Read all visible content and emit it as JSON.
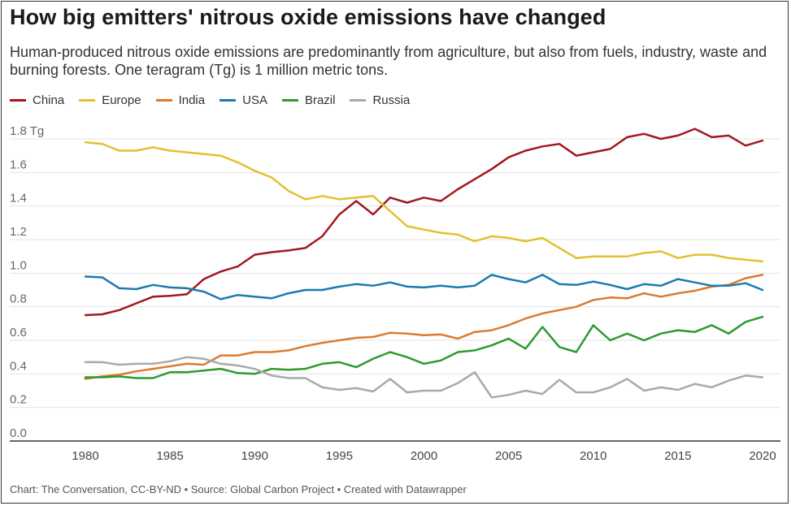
{
  "title": "How big emitters' nitrous oxide emissions have changed",
  "subtitle": "Human-produced nitrous oxide emissions are predominantly from agriculture, but also from fuels, industry, waste and burning forests. One teragram (Tg) is 1 million metric tons.",
  "footer": "Chart: The Conversation, CC-BY-ND • Source: Global Carbon Project • Created with Datawrapper",
  "chart_data": {
    "type": "line",
    "title": "How big emitters' nitrous oxide emissions have changed",
    "xlabel": "",
    "ylabel": "",
    "unit": "Tg",
    "ylim": [
      0,
      1.8
    ],
    "y_ticks": [
      "0.0",
      "0.2",
      "0.4",
      "0.6",
      "0.8",
      "1.0",
      "1.2",
      "1.4",
      "1.6",
      "1.8 Tg"
    ],
    "x_ticks": [
      "1980",
      "1985",
      "1990",
      "1995",
      "2000",
      "2005",
      "2010",
      "2015",
      "2020"
    ],
    "grid": true,
    "legend_position": "top-left",
    "x": [
      1980,
      1981,
      1982,
      1983,
      1984,
      1985,
      1986,
      1987,
      1988,
      1989,
      1990,
      1991,
      1992,
      1993,
      1994,
      1995,
      1996,
      1997,
      1998,
      1999,
      2000,
      2001,
      2002,
      2003,
      2004,
      2005,
      2006,
      2007,
      2008,
      2009,
      2010,
      2011,
      2012,
      2013,
      2014,
      2015,
      2016,
      2017,
      2018,
      2019,
      2020
    ],
    "series": [
      {
        "name": "China",
        "color": "#a3171f",
        "values": [
          0.75,
          0.755,
          0.78,
          0.82,
          0.86,
          0.865,
          0.875,
          0.965,
          1.01,
          1.04,
          1.11,
          1.125,
          1.135,
          1.15,
          1.22,
          1.35,
          1.43,
          1.35,
          1.45,
          1.42,
          1.45,
          1.43,
          1.5,
          1.56,
          1.62,
          1.69,
          1.73,
          1.755,
          1.77,
          1.7,
          1.72,
          1.74,
          1.81,
          1.83,
          1.8,
          1.82,
          1.86,
          1.81,
          1.82,
          1.76,
          1.79
        ]
      },
      {
        "name": "Europe",
        "color": "#e2c12e",
        "values": [
          1.78,
          1.77,
          1.73,
          1.73,
          1.75,
          1.73,
          1.72,
          1.71,
          1.7,
          1.66,
          1.61,
          1.57,
          1.49,
          1.44,
          1.46,
          1.44,
          1.45,
          1.46,
          1.37,
          1.28,
          1.26,
          1.24,
          1.23,
          1.19,
          1.22,
          1.21,
          1.19,
          1.21,
          1.15,
          1.09,
          1.1,
          1.1,
          1.1,
          1.12,
          1.13,
          1.09,
          1.11,
          1.11,
          1.09,
          1.08,
          1.07
        ]
      },
      {
        "name": "India",
        "color": "#dd7a2d",
        "values": [
          0.37,
          0.385,
          0.395,
          0.415,
          0.43,
          0.445,
          0.46,
          0.455,
          0.51,
          0.51,
          0.53,
          0.53,
          0.54,
          0.565,
          0.585,
          0.6,
          0.615,
          0.62,
          0.645,
          0.64,
          0.63,
          0.635,
          0.61,
          0.65,
          0.66,
          0.69,
          0.73,
          0.76,
          0.78,
          0.8,
          0.84,
          0.855,
          0.85,
          0.88,
          0.86,
          0.88,
          0.895,
          0.92,
          0.93,
          0.97,
          0.99
        ]
      },
      {
        "name": "USA",
        "color": "#1b7bb0",
        "values": [
          0.98,
          0.975,
          0.91,
          0.905,
          0.93,
          0.915,
          0.91,
          0.89,
          0.845,
          0.87,
          0.86,
          0.85,
          0.88,
          0.9,
          0.9,
          0.92,
          0.935,
          0.925,
          0.945,
          0.92,
          0.915,
          0.925,
          0.915,
          0.925,
          0.99,
          0.965,
          0.945,
          0.99,
          0.935,
          0.93,
          0.95,
          0.93,
          0.905,
          0.935,
          0.925,
          0.965,
          0.945,
          0.925,
          0.925,
          0.94,
          0.9
        ]
      },
      {
        "name": "Brazil",
        "color": "#2d9a2d",
        "values": [
          0.38,
          0.38,
          0.385,
          0.375,
          0.375,
          0.41,
          0.41,
          0.42,
          0.43,
          0.405,
          0.4,
          0.43,
          0.425,
          0.43,
          0.46,
          0.47,
          0.44,
          0.49,
          0.53,
          0.5,
          0.46,
          0.48,
          0.53,
          0.54,
          0.57,
          0.61,
          0.55,
          0.68,
          0.56,
          0.53,
          0.69,
          0.6,
          0.64,
          0.6,
          0.64,
          0.66,
          0.65,
          0.69,
          0.64,
          0.71,
          0.74
        ]
      },
      {
        "name": "Russia",
        "color": "#a9a9a9",
        "values": [
          0.47,
          0.47,
          0.455,
          0.46,
          0.46,
          0.475,
          0.5,
          0.49,
          0.46,
          0.45,
          0.43,
          0.39,
          0.375,
          0.375,
          0.32,
          0.305,
          0.315,
          0.295,
          0.37,
          0.29,
          0.3,
          0.3,
          0.345,
          0.41,
          0.26,
          0.275,
          0.3,
          0.28,
          0.365,
          0.29,
          0.29,
          0.32,
          0.37,
          0.3,
          0.32,
          0.305,
          0.34,
          0.32,
          0.36,
          0.39,
          0.38
        ]
      }
    ]
  }
}
